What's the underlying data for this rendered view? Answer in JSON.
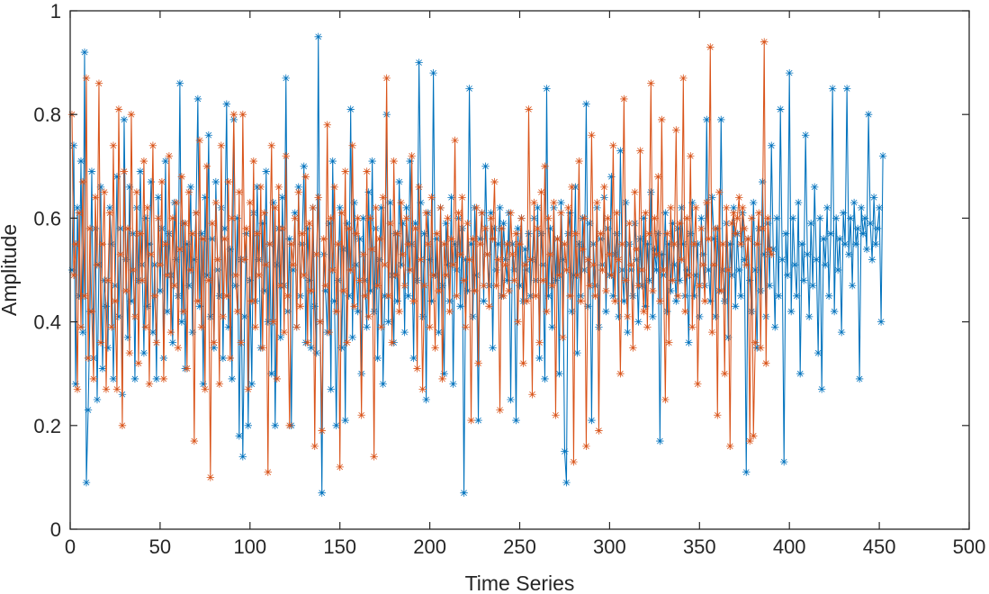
{
  "chart_data": {
    "type": "line",
    "title": "",
    "xlabel": "Time Series",
    "ylabel": "Amplitude",
    "xlim": [
      0,
      500
    ],
    "ylim": [
      0,
      1
    ],
    "x_ticks": [
      0,
      50,
      100,
      150,
      200,
      250,
      300,
      350,
      400,
      450,
      500
    ],
    "y_ticks": [
      0,
      0.2,
      0.4,
      0.6,
      0.8,
      1
    ],
    "x_tick_labels": [
      "0",
      "50",
      "100",
      "150",
      "200",
      "250",
      "300",
      "350",
      "400",
      "450",
      "500"
    ],
    "y_tick_labels": [
      "0",
      "0.2",
      "0.4",
      "0.6",
      "0.8",
      "1"
    ],
    "grid": false,
    "marker": "*",
    "series": [
      {
        "name": "series-1",
        "color": "#0072BD",
        "x_start": 1,
        "x_step": 1,
        "values": [
          0.5,
          0.74,
          0.28,
          0.62,
          0.45,
          0.71,
          0.38,
          0.92,
          0.09,
          0.23,
          0.42,
          0.69,
          0.33,
          0.58,
          0.25,
          0.51,
          0.66,
          0.31,
          0.48,
          0.43,
          0.35,
          0.62,
          0.55,
          0.29,
          0.47,
          0.68,
          0.41,
          0.58,
          0.26,
          0.79,
          0.52,
          0.37,
          0.66,
          0.44,
          0.57,
          0.29,
          0.62,
          0.48,
          0.69,
          0.51,
          0.34,
          0.6,
          0.43,
          0.55,
          0.67,
          0.38,
          0.51,
          0.29,
          0.64,
          0.46,
          0.58,
          0.33,
          0.71,
          0.42,
          0.57,
          0.49,
          0.36,
          0.63,
          0.52,
          0.45,
          0.86,
          0.4,
          0.59,
          0.31,
          0.55,
          0.47,
          0.66,
          0.38,
          0.52,
          0.61,
          0.83,
          0.43,
          0.57,
          0.28,
          0.64,
          0.49,
          0.76,
          0.41,
          0.56,
          0.35,
          0.67,
          0.5,
          0.45,
          0.62,
          0.33,
          0.58,
          0.82,
          0.39,
          0.54,
          0.29,
          0.79,
          0.47,
          0.6,
          0.18,
          0.52,
          0.14,
          0.41,
          0.57,
          0.2,
          0.48,
          0.28,
          0.61,
          0.44,
          0.66,
          0.52,
          0.35,
          0.59,
          0.46,
          0.69,
          0.4,
          0.55,
          0.3,
          0.63,
          0.2,
          0.51,
          0.58,
          0.37,
          0.64,
          0.47,
          0.87,
          0.42,
          0.56,
          0.2,
          0.5,
          0.61,
          0.39,
          0.66,
          0.45,
          0.55,
          0.7,
          0.36,
          0.58,
          0.48,
          0.35,
          0.62,
          0.43,
          0.34,
          0.95,
          0.4,
          0.07,
          0.53,
          0.46,
          0.38,
          0.59,
          0.27,
          0.71,
          0.44,
          0.2,
          0.48,
          0.62,
          0.35,
          0.54,
          0.21,
          0.59,
          0.45,
          0.81,
          0.37,
          0.63,
          0.51,
          0.42,
          0.56,
          0.3,
          0.6,
          0.48,
          0.39,
          0.65,
          0.46,
          0.71,
          0.42,
          0.58,
          0.33,
          0.52,
          0.62,
          0.28,
          0.45,
          0.8,
          0.4,
          0.63,
          0.49,
          0.36,
          0.57,
          0.44,
          0.67,
          0.51,
          0.59,
          0.38,
          0.62,
          0.45,
          0.71,
          0.55,
          0.33,
          0.59,
          0.48,
          0.9,
          0.63,
          0.41,
          0.57,
          0.25,
          0.61,
          0.52,
          0.44,
          0.88,
          0.49,
          0.56,
          0.38,
          0.62,
          0.47,
          0.3,
          0.59,
          0.51,
          0.44,
          0.64,
          0.28,
          0.55,
          0.5,
          0.6,
          0.43,
          0.58,
          0.07,
          0.52,
          0.46,
          0.85,
          0.55,
          0.41,
          0.62,
          0.49,
          0.21,
          0.56,
          0.61,
          0.44,
          0.7,
          0.53,
          0.47,
          0.61,
          0.35,
          0.58,
          0.5,
          0.55,
          0.62,
          0.45,
          0.59,
          0.52,
          0.48,
          0.61,
          0.25,
          0.55,
          0.5,
          0.21,
          0.58,
          0.47,
          0.6,
          0.44,
          0.54,
          0.5,
          0.57,
          0.45,
          0.52,
          0.6,
          0.48,
          0.62,
          0.33,
          0.57,
          0.51,
          0.29,
          0.85,
          0.45,
          0.58,
          0.39,
          0.62,
          0.48,
          0.56,
          0.3,
          0.63,
          0.52,
          0.15,
          0.09,
          0.57,
          0.61,
          0.42,
          0.49,
          0.66,
          0.34,
          0.55,
          0.45,
          0.6,
          0.5,
          0.82,
          0.43,
          0.59,
          0.21,
          0.55,
          0.47,
          0.62,
          0.39,
          0.56,
          0.51,
          0.64,
          0.42,
          0.58,
          0.49,
          0.68,
          0.45,
          0.53,
          0.57,
          0.41,
          0.73,
          0.5,
          0.44,
          0.63,
          0.38,
          0.55,
          0.5,
          0.45,
          0.59,
          0.52,
          0.4,
          0.56,
          0.47,
          0.6,
          0.43,
          0.55,
          0.48,
          0.65,
          0.41,
          0.54,
          0.5,
          0.57,
          0.17,
          0.53,
          0.49,
          0.61,
          0.42,
          0.55,
          0.46,
          0.59,
          0.51,
          0.44,
          0.58,
          0.48,
          0.62,
          0.55,
          0.45,
          0.5,
          0.36,
          0.57,
          0.63,
          0.45,
          0.49,
          0.55,
          0.41,
          0.6,
          0.53,
          0.47,
          0.79,
          0.5,
          0.44,
          0.64,
          0.56,
          0.41,
          0.58,
          0.46,
          0.79,
          0.5,
          0.44,
          0.59,
          0.37,
          0.55,
          0.49,
          0.62,
          0.43,
          0.57,
          0.5,
          0.45,
          0.61,
          0.52,
          0.11,
          0.56,
          0.48,
          0.42,
          0.63,
          0.5,
          0.35,
          0.58,
          0.46,
          0.67,
          0.53,
          0.41,
          0.59,
          0.47,
          0.74,
          0.54,
          0.39,
          0.6,
          0.45,
          0.81,
          0.52,
          0.13,
          0.57,
          0.49,
          0.88,
          0.42,
          0.6,
          0.51,
          0.45,
          0.63,
          0.3,
          0.55,
          0.48,
          0.76,
          0.53,
          0.41,
          0.59,
          0.47,
          0.66,
          0.52,
          0.34,
          0.6,
          0.27,
          0.56,
          0.51,
          0.62,
          0.45,
          0.57,
          0.85,
          0.42,
          0.6,
          0.5,
          0.56,
          0.38,
          0.61,
          0.55,
          0.85,
          0.53,
          0.6,
          0.47,
          0.63,
          0.55,
          0.58,
          0.29,
          0.62,
          0.57,
          0.6,
          0.54,
          0.8,
          0.59,
          0.52,
          0.64,
          0.55,
          0.58,
          0.62,
          0.4,
          0.72
        ]
      },
      {
        "name": "series-2",
        "color": "#D95319",
        "x_start": 1,
        "x_step": 1,
        "values": [
          0.8,
          0.49,
          0.55,
          0.27,
          0.61,
          0.39,
          0.67,
          0.45,
          0.87,
          0.33,
          0.58,
          0.42,
          0.29,
          0.64,
          0.51,
          0.86,
          0.36,
          0.55,
          0.65,
          0.27,
          0.48,
          0.61,
          0.39,
          0.74,
          0.44,
          0.27,
          0.81,
          0.53,
          0.2,
          0.69,
          0.46,
          0.58,
          0.34,
          0.8,
          0.5,
          0.41,
          0.65,
          0.32,
          0.57,
          0.48,
          0.71,
          0.39,
          0.62,
          0.28,
          0.53,
          0.74,
          0.45,
          0.36,
          0.6,
          0.51,
          0.67,
          0.29,
          0.55,
          0.49,
          0.72,
          0.38,
          0.6,
          0.47,
          0.63,
          0.35,
          0.54,
          0.68,
          0.42,
          0.59,
          0.31,
          0.65,
          0.5,
          0.57,
          0.17,
          0.61,
          0.44,
          0.75,
          0.39,
          0.56,
          0.27,
          0.7,
          0.48,
          0.1,
          0.59,
          0.36,
          0.63,
          0.52,
          0.28,
          0.74,
          0.41,
          0.56,
          0.45,
          0.67,
          0.33,
          0.6,
          0.8,
          0.49,
          0.42,
          0.65,
          0.36,
          0.8,
          0.52,
          0.58,
          0.27,
          0.63,
          0.44,
          0.71,
          0.39,
          0.57,
          0.49,
          0.66,
          0.35,
          0.61,
          0.51,
          0.11,
          0.55,
          0.74,
          0.4,
          0.62,
          0.29,
          0.66,
          0.47,
          0.58,
          0.38,
          0.72,
          0.45,
          0.2,
          0.55,
          0.51,
          0.6,
          0.39,
          0.65,
          0.43,
          0.57,
          0.49,
          0.68,
          0.36,
          0.59,
          0.46,
          0.62,
          0.16,
          0.53,
          0.64,
          0.4,
          0.19,
          0.56,
          0.47,
          0.78,
          0.38,
          0.6,
          0.5,
          0.66,
          0.42,
          0.55,
          0.12,
          0.61,
          0.46,
          0.69,
          0.36,
          0.58,
          0.5,
          0.74,
          0.43,
          0.57,
          0.6,
          0.48,
          0.22,
          0.53,
          0.45,
          0.69,
          0.41,
          0.6,
          0.54,
          0.14,
          0.62,
          0.47,
          0.56,
          0.39,
          0.64,
          0.51,
          0.87,
          0.45,
          0.59,
          0.36,
          0.71,
          0.49,
          0.57,
          0.42,
          0.63,
          0.53,
          0.47,
          0.6,
          0.55,
          0.5,
          0.72,
          0.44,
          0.58,
          0.31,
          0.66,
          0.52,
          0.27,
          0.47,
          0.61,
          0.55,
          0.39,
          0.64,
          0.49,
          0.35,
          0.57,
          0.46,
          0.62,
          0.29,
          0.55,
          0.49,
          0.6,
          0.42,
          0.56,
          0.51,
          0.75,
          0.45,
          0.61,
          0.53,
          0.64,
          0.48,
          0.39,
          0.59,
          0.52,
          0.21,
          0.56,
          0.46,
          0.62,
          0.32,
          0.55,
          0.61,
          0.47,
          0.58,
          0.53,
          0.43,
          0.6,
          0.56,
          0.67,
          0.47,
          0.52,
          0.23,
          0.58,
          0.45,
          0.51,
          0.55,
          0.46,
          0.61,
          0.53,
          0.48,
          0.57,
          0.4,
          0.55,
          0.6,
          0.32,
          0.51,
          0.44,
          0.81,
          0.52,
          0.26,
          0.63,
          0.45,
          0.58,
          0.36,
          0.65,
          0.48,
          0.7,
          0.42,
          0.6,
          0.53,
          0.47,
          0.63,
          0.22,
          0.56,
          0.49,
          0.61,
          0.37,
          0.55,
          0.5,
          0.62,
          0.45,
          0.66,
          0.13,
          0.57,
          0.49,
          0.71,
          0.44,
          0.54,
          0.6,
          0.16,
          0.52,
          0.47,
          0.76,
          0.51,
          0.45,
          0.63,
          0.19,
          0.57,
          0.5,
          0.66,
          0.46,
          0.6,
          0.53,
          0.49,
          0.74,
          0.44,
          0.61,
          0.52,
          0.3,
          0.55,
          0.83,
          0.48,
          0.41,
          0.59,
          0.51,
          0.35,
          0.65,
          0.54,
          0.47,
          0.73,
          0.5,
          0.42,
          0.61,
          0.39,
          0.57,
          0.86,
          0.46,
          0.6,
          0.53,
          0.68,
          0.44,
          0.79,
          0.5,
          0.25,
          0.57,
          0.36,
          0.62,
          0.48,
          0.55,
          0.77,
          0.45,
          0.59,
          0.52,
          0.87,
          0.42,
          0.6,
          0.49,
          0.72,
          0.39,
          0.55,
          0.62,
          0.28,
          0.47,
          0.58,
          0.51,
          0.44,
          0.63,
          0.56,
          0.93,
          0.38,
          0.51,
          0.58,
          0.22,
          0.65,
          0.46,
          0.55,
          0.3,
          0.62,
          0.5,
          0.16,
          0.59,
          0.61,
          0.57,
          0.6,
          0.64,
          0.55,
          0.62,
          0.58,
          0.51,
          0.56,
          0.17,
          0.6,
          0.18,
          0.36,
          0.55,
          0.61,
          0.35,
          0.58,
          0.94,
          0.32,
          0.6,
          0.54,
          0.53
        ]
      }
    ]
  }
}
